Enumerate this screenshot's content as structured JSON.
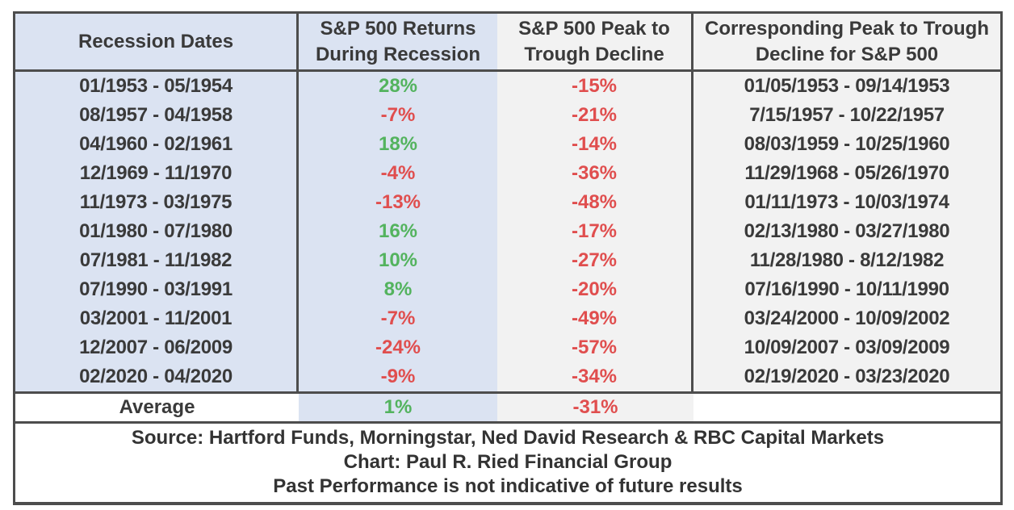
{
  "colors": {
    "positive_text": "#53b35e",
    "negative_text": "#e04e4e",
    "blue_column_bg": "#dbe3f2",
    "gray_column_bg": "#f2f2f2",
    "border": "#4d4d4d",
    "ink": "#3a3a3a"
  },
  "table": {
    "headers": [
      {
        "line1": "Recession Dates",
        "line2": ""
      },
      {
        "line1": "S&P 500 Returns",
        "line2": "During Recession"
      },
      {
        "line1": "S&P 500 Peak to",
        "line2": "Trough Decline"
      },
      {
        "line1": "Corresponding Peak to Trough",
        "line2": "Decline for S&P 500"
      }
    ],
    "rows": [
      {
        "dates": "01/1953 - 05/1954",
        "returns": "28%",
        "decline": "-15%",
        "corresponding": "01/05/1953 - 09/14/1953"
      },
      {
        "dates": "08/1957 - 04/1958",
        "returns": "-7%",
        "decline": "-21%",
        "corresponding": "7/15/1957 - 10/22/1957"
      },
      {
        "dates": "04/1960 - 02/1961",
        "returns": "18%",
        "decline": "-14%",
        "corresponding": "08/03/1959 - 10/25/1960"
      },
      {
        "dates": "12/1969 - 11/1970",
        "returns": "-4%",
        "decline": "-36%",
        "corresponding": "11/29/1968 - 05/26/1970"
      },
      {
        "dates": "11/1973 - 03/1975",
        "returns": "-13%",
        "decline": "-48%",
        "corresponding": "01/11/1973 - 10/03/1974"
      },
      {
        "dates": "01/1980 - 07/1980",
        "returns": "16%",
        "decline": "-17%",
        "corresponding": "02/13/1980 - 03/27/1980"
      },
      {
        "dates": "07/1981 - 11/1982",
        "returns": "10%",
        "decline": "-27%",
        "corresponding": "11/28/1980 - 8/12/1982"
      },
      {
        "dates": "07/1990 - 03/1991",
        "returns": "8%",
        "decline": "-20%",
        "corresponding": "07/16/1990 - 10/11/1990"
      },
      {
        "dates": "03/2001 - 11/2001",
        "returns": "-7%",
        "decline": "-49%",
        "corresponding": "03/24/2000 - 10/09/2002"
      },
      {
        "dates": "12/2007 - 06/2009",
        "returns": "-24%",
        "decline": "-57%",
        "corresponding": "10/09/2007 - 03/09/2009"
      },
      {
        "dates": "02/2020 - 04/2020",
        "returns": "-9%",
        "decline": "-34%",
        "corresponding": "02/19/2020 - 03/23/2020"
      }
    ],
    "average": {
      "label": "Average",
      "returns": "1%",
      "decline": "-31%",
      "corresponding": ""
    }
  },
  "footer": {
    "lines": [
      "Source: Hartford Funds, Morningstar, Ned David Research & RBC Capital Markets",
      "Chart: Paul R. Ried Financial Group",
      "Past Performance is not indicative of future results"
    ]
  },
  "chart_data": {
    "type": "table",
    "title": "S&P 500 performance during recessions",
    "columns": [
      "Recession Dates",
      "S&P 500 Returns During Recession",
      "S&P 500 Peak to Trough Decline",
      "Corresponding Peak to Trough Decline for S&P 500"
    ],
    "rows": [
      [
        "01/1953 - 05/1954",
        "28%",
        "-15%",
        "01/05/1953 - 09/14/1953"
      ],
      [
        "08/1957 - 04/1958",
        "-7%",
        "-21%",
        "7/15/1957 - 10/22/1957"
      ],
      [
        "04/1960 - 02/1961",
        "18%",
        "-14%",
        "08/03/1959 - 10/25/1960"
      ],
      [
        "12/1969 - 11/1970",
        "-4%",
        "-36%",
        "11/29/1968 - 05/26/1970"
      ],
      [
        "11/1973 - 03/1975",
        "-13%",
        "-48%",
        "01/11/1973 - 10/03/1974"
      ],
      [
        "01/1980 - 07/1980",
        "16%",
        "-17%",
        "02/13/1980 - 03/27/1980"
      ],
      [
        "07/1981 - 11/1982",
        "10%",
        "-27%",
        "11/28/1980 - 8/12/1982"
      ],
      [
        "07/1990 - 03/1991",
        "8%",
        "-20%",
        "07/16/1990 - 10/11/1990"
      ],
      [
        "03/2001 - 11/2001",
        "-7%",
        "-49%",
        "03/24/2000 - 10/09/2002"
      ],
      [
        "12/2007 - 06/2009",
        "-24%",
        "-57%",
        "10/09/2007 - 03/09/2009"
      ],
      [
        "02/2020 - 04/2020",
        "-9%",
        "-34%",
        "02/19/2020 - 03/23/2020"
      ]
    ],
    "summary_row": [
      "Average",
      "1%",
      "-31%",
      ""
    ],
    "returns_numeric_pct": [
      28,
      -7,
      18,
      -4,
      -13,
      16,
      10,
      8,
      -7,
      -24,
      -9
    ],
    "peak_to_trough_numeric_pct": [
      -15,
      -21,
      -14,
      -36,
      -48,
      -17,
      -27,
      -20,
      -49,
      -57,
      -34
    ],
    "average_return_pct": 1,
    "average_peak_to_trough_pct": -31,
    "footnotes": [
      "Source: Hartford Funds, Morningstar, Ned David Research & RBC Capital Markets",
      "Chart: Paul R. Ried Financial Group",
      "Past Performance is not indicative of future results"
    ],
    "style_notes": "positive returns green, negative values red, date columns alternating light-blue and light-gray backgrounds"
  }
}
